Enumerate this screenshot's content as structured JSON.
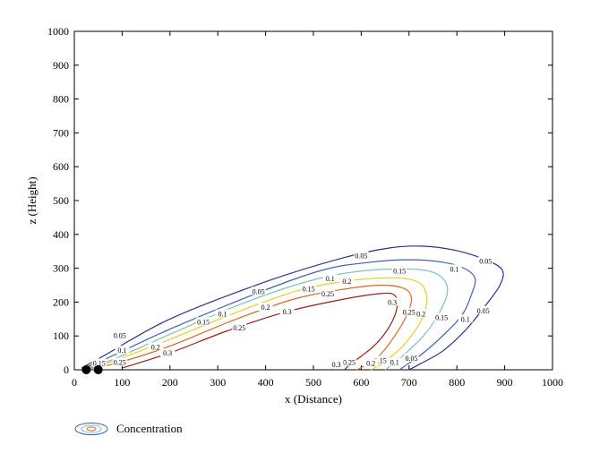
{
  "chart_data": {
    "type": "contour",
    "xlabel": "x (Distance)",
    "ylabel": "z (Height)",
    "xlim": [
      0,
      1000
    ],
    "ylim": [
      0,
      1000
    ],
    "x_ticks": [
      "0",
      "100",
      "200",
      "300",
      "400",
      "500",
      "600",
      "700",
      "800",
      "900",
      "1000"
    ],
    "y_ticks": [
      "0",
      "100",
      "200",
      "300",
      "400",
      "500",
      "600",
      "700",
      "800",
      "900",
      "1000"
    ],
    "legend": {
      "label": "Concentration",
      "placement": "bottom-left"
    },
    "sources": [
      {
        "x": 25,
        "z": 0
      },
      {
        "x": 50,
        "z": 0
      }
    ],
    "contours": [
      {
        "level": "0.05",
        "color": "#2e2e8c",
        "points": [
          [
            15,
            5
          ],
          [
            60,
            40
          ],
          [
            200,
            150
          ],
          [
            400,
            260
          ],
          [
            560,
            330
          ],
          [
            660,
            360
          ],
          [
            730,
            365
          ],
          [
            800,
            352
          ],
          [
            860,
            325
          ],
          [
            895,
            295
          ],
          [
            890,
            250
          ],
          [
            860,
            190
          ],
          [
            820,
            120
          ],
          [
            770,
            55
          ],
          [
            720,
            15
          ],
          [
            700,
            0
          ]
        ],
        "labels": [
          {
            "text": "0.05",
            "x": 95,
            "z": 102
          },
          {
            "text": "0.05",
            "x": 385,
            "z": 232
          },
          {
            "text": "0.05",
            "x": 600,
            "z": 337
          },
          {
            "text": "0.05",
            "x": 860,
            "z": 322
          },
          {
            "text": "0.05",
            "x": 855,
            "z": 175
          },
          {
            "text": "0.05",
            "x": 705,
            "z": 35
          }
        ]
      },
      {
        "level": "0.1",
        "color": "#3d5fb8",
        "points": [
          [
            20,
            5
          ],
          [
            70,
            35
          ],
          [
            200,
            120
          ],
          [
            380,
            225
          ],
          [
            520,
            295
          ],
          [
            620,
            318
          ],
          [
            700,
            325
          ],
          [
            770,
            318
          ],
          [
            815,
            300
          ],
          [
            838,
            270
          ],
          [
            830,
            220
          ],
          [
            810,
            160
          ],
          [
            770,
            100
          ],
          [
            730,
            50
          ],
          [
            690,
            10
          ],
          [
            680,
            0
          ]
        ],
        "labels": [
          {
            "text": "0.1",
            "x": 100,
            "z": 58
          },
          {
            "text": "0.1",
            "x": 310,
            "z": 165
          },
          {
            "text": "0.1",
            "x": 535,
            "z": 270
          },
          {
            "text": "0.1",
            "x": 795,
            "z": 298
          },
          {
            "text": "0.1",
            "x": 818,
            "z": 150
          },
          {
            "text": "0.1",
            "x": 670,
            "z": 22
          }
        ]
      },
      {
        "level": "0.15",
        "color": "#7dc1c0",
        "points": [
          [
            22,
            4
          ],
          [
            80,
            30
          ],
          [
            200,
            105
          ],
          [
            350,
            195
          ],
          [
            490,
            262
          ],
          [
            590,
            290
          ],
          [
            680,
            298
          ],
          [
            740,
            292
          ],
          [
            772,
            268
          ],
          [
            780,
            225
          ],
          [
            760,
            160
          ],
          [
            730,
            100
          ],
          [
            690,
            45
          ],
          [
            660,
            10
          ],
          [
            650,
            0
          ]
        ],
        "labels": [
          {
            "text": "0.15",
            "x": 52,
            "z": 20
          },
          {
            "text": "0.15",
            "x": 270,
            "z": 142
          },
          {
            "text": "0.15",
            "x": 490,
            "z": 240
          },
          {
            "text": "0.15",
            "x": 680,
            "z": 292
          },
          {
            "text": "0.15",
            "x": 768,
            "z": 155
          },
          {
            "text": "0.15",
            "x": 640,
            "z": 28
          }
        ]
      },
      {
        "level": "0.2",
        "color": "#e8d020",
        "points": [
          [
            25,
            4
          ],
          [
            80,
            25
          ],
          [
            200,
            90
          ],
          [
            340,
            170
          ],
          [
            470,
            235
          ],
          [
            570,
            262
          ],
          [
            660,
            272
          ],
          [
            715,
            262
          ],
          [
            735,
            230
          ],
          [
            735,
            180
          ],
          [
            715,
            120
          ],
          [
            680,
            60
          ],
          [
            640,
            15
          ],
          [
            620,
            0
          ]
        ],
        "labels": [
          {
            "text": "0.2",
            "x": 170,
            "z": 68
          },
          {
            "text": "0.2",
            "x": 400,
            "z": 185
          },
          {
            "text": "0.2",
            "x": 570,
            "z": 262
          },
          {
            "text": "0.2",
            "x": 725,
            "z": 165
          },
          {
            "text": "0.2",
            "x": 620,
            "z": 20
          }
        ]
      },
      {
        "level": "0.25",
        "color": "#d96b1e",
        "points": [
          [
            28,
            3
          ],
          [
            90,
            20
          ],
          [
            200,
            70
          ],
          [
            330,
            145
          ],
          [
            450,
            205
          ],
          [
            550,
            235
          ],
          [
            640,
            250
          ],
          [
            690,
            240
          ],
          [
            705,
            210
          ],
          [
            695,
            160
          ],
          [
            670,
            100
          ],
          [
            640,
            45
          ],
          [
            605,
            10
          ],
          [
            590,
            0
          ]
        ],
        "labels": [
          {
            "text": "0.25",
            "x": 95,
            "z": 22
          },
          {
            "text": "0.25",
            "x": 345,
            "z": 125
          },
          {
            "text": "0.25",
            "x": 530,
            "z": 225
          },
          {
            "text": "0.25",
            "x": 700,
            "z": 170
          },
          {
            "text": "0.25",
            "x": 575,
            "z": 22
          }
        ]
      },
      {
        "level": "0.3",
        "color": "#9a1e12",
        "points": [
          [
            100,
            5
          ],
          [
            200,
            50
          ],
          [
            320,
            115
          ],
          [
            440,
            170
          ],
          [
            550,
            205
          ],
          [
            640,
            225
          ],
          [
            670,
            220
          ],
          [
            675,
            185
          ],
          [
            660,
            130
          ],
          [
            630,
            75
          ],
          [
            600,
            40
          ],
          [
            580,
            20
          ],
          [
            565,
            0
          ]
        ],
        "labels": [
          {
            "text": "0.3",
            "x": 195,
            "z": 50
          },
          {
            "text": "0.3",
            "x": 445,
            "z": 172
          },
          {
            "text": "0.3",
            "x": 665,
            "z": 200
          },
          {
            "text": "0.3",
            "x": 548,
            "z": 16
          }
        ]
      }
    ]
  }
}
